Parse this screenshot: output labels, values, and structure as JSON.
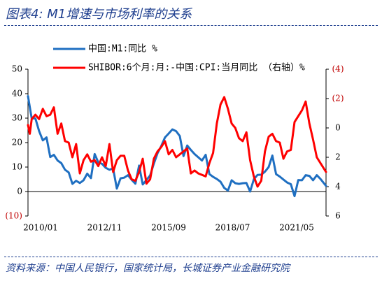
{
  "figure": {
    "label": "图表4:",
    "title": "M1增速与市场利率的关系",
    "source": "资料来源：中国人民银行，国家统计局，长城证券产业金融研究院"
  },
  "colors": {
    "heading": "#1f3f8f",
    "series_m1": "#1f6fc1",
    "series_real_rate": "#ff0000",
    "axis": "#000000",
    "right_axis_neg_label": "#c00000"
  },
  "chart_data": {
    "type": "line",
    "legend_placement": "top",
    "grid": false,
    "x_tick_labels": [
      "2010/01",
      "2012/11",
      "2015/09",
      "2018/07",
      "2021/05"
    ],
    "x_range": [
      "2010-01",
      "2023-06"
    ],
    "left_axis": {
      "ylim": [
        -10,
        50
      ],
      "ticks": [
        -10,
        0,
        10,
        20,
        30,
        40,
        50
      ],
      "tick_labels": [
        "(10)",
        "0",
        "10",
        "20",
        "30",
        "40",
        "50"
      ]
    },
    "right_axis": {
      "inverted": true,
      "ylim": [
        -4,
        6
      ],
      "ticks": [
        -4,
        -2,
        0,
        2,
        4,
        6
      ],
      "tick_labels": [
        "(4)",
        "(2)",
        "0",
        "2",
        "4",
        "6"
      ],
      "unit": "%"
    },
    "series": [
      {
        "name": "中国:M1:同比 %",
        "axis": "left",
        "x": [
          "2010-01",
          "2010-03",
          "2010-05",
          "2010-07",
          "2010-09",
          "2010-11",
          "2011-01",
          "2011-03",
          "2011-05",
          "2011-07",
          "2011-09",
          "2011-11",
          "2012-01",
          "2012-03",
          "2012-05",
          "2012-07",
          "2012-09",
          "2012-11",
          "2013-01",
          "2013-03",
          "2013-05",
          "2013-07",
          "2013-09",
          "2013-11",
          "2014-01",
          "2014-03",
          "2014-05",
          "2014-07",
          "2014-09",
          "2014-11",
          "2015-01",
          "2015-03",
          "2015-05",
          "2015-07",
          "2015-09",
          "2015-11",
          "2016-01",
          "2016-03",
          "2016-05",
          "2016-07",
          "2016-09",
          "2016-11",
          "2017-01",
          "2017-03",
          "2017-05",
          "2017-07",
          "2017-09",
          "2017-11",
          "2018-01",
          "2018-03",
          "2018-05",
          "2018-07",
          "2018-09",
          "2018-11",
          "2019-01",
          "2019-03",
          "2019-05",
          "2019-07",
          "2019-09",
          "2019-11",
          "2020-01",
          "2020-03",
          "2020-05",
          "2020-07",
          "2020-09",
          "2020-11",
          "2021-01",
          "2021-03",
          "2021-05",
          "2021-07",
          "2021-09",
          "2021-11",
          "2022-01",
          "2022-03",
          "2022-05",
          "2022-07",
          "2022-09",
          "2022-11",
          "2023-01",
          "2023-03",
          "2023-06"
        ],
        "values": [
          39.0,
          29.9,
          29.9,
          24.7,
          20.9,
          22.1,
          14.1,
          15.0,
          12.7,
          11.6,
          8.9,
          7.8,
          3.1,
          4.4,
          3.5,
          4.6,
          7.3,
          5.5,
          15.3,
          11.9,
          11.3,
          9.7,
          8.9,
          9.4,
          1.2,
          5.4,
          5.7,
          6.7,
          4.8,
          3.2,
          10.6,
          2.9,
          4.7,
          6.6,
          11.4,
          15.7,
          18.6,
          22.1,
          23.7,
          25.4,
          24.7,
          22.7,
          14.5,
          18.8,
          17.0,
          15.3,
          14.0,
          12.7,
          15.0,
          7.1,
          6.0,
          5.1,
          4.0,
          1.5,
          0.4,
          4.6,
          3.4,
          3.1,
          3.4,
          3.5,
          0.0,
          5.0,
          6.8,
          6.9,
          8.1,
          10.0,
          14.7,
          7.1,
          6.1,
          4.9,
          3.7,
          3.0,
          -1.9,
          4.7,
          4.6,
          6.7,
          6.4,
          4.6,
          6.7,
          5.1,
          2.3
        ]
      },
      {
        "name": "SHIBOR:6个月:月:-中国:CPI:当月同比 （右轴）%",
        "axis": "right",
        "x": [
          "2010-01",
          "2010-02",
          "2010-03",
          "2010-05",
          "2010-07",
          "2010-09",
          "2010-11",
          "2011-01",
          "2011-03",
          "2011-05",
          "2011-07",
          "2011-09",
          "2011-11",
          "2012-01",
          "2012-03",
          "2012-05",
          "2012-07",
          "2012-09",
          "2012-11",
          "2013-01",
          "2013-03",
          "2013-05",
          "2013-07",
          "2013-09",
          "2013-11",
          "2014-01",
          "2014-03",
          "2014-05",
          "2014-07",
          "2014-09",
          "2014-11",
          "2015-01",
          "2015-03",
          "2015-05",
          "2015-07",
          "2015-09",
          "2015-11",
          "2016-01",
          "2016-03",
          "2016-05",
          "2016-07",
          "2016-09",
          "2016-11",
          "2017-01",
          "2017-03",
          "2017-05",
          "2017-07",
          "2017-09",
          "2017-11",
          "2018-01",
          "2018-03",
          "2018-05",
          "2018-07",
          "2018-09",
          "2018-11",
          "2019-01",
          "2019-03",
          "2019-05",
          "2019-07",
          "2019-09",
          "2019-11",
          "2020-01",
          "2020-03",
          "2020-05",
          "2020-07",
          "2020-09",
          "2020-11",
          "2021-01",
          "2021-03",
          "2021-05",
          "2021-07",
          "2021-09",
          "2021-11",
          "2022-01",
          "2022-03",
          "2022-05",
          "2022-07",
          "2022-09",
          "2022-11",
          "2023-01",
          "2023-03",
          "2023-06"
        ],
        "values": [
          -0.2,
          0.4,
          -0.6,
          -0.9,
          -0.6,
          -1.3,
          -0.8,
          -0.9,
          -1.4,
          0.4,
          -0.3,
          0.9,
          1.0,
          2.0,
          1.1,
          3.1,
          2.2,
          1.8,
          2.3,
          2.2,
          2.6,
          2.0,
          2.6,
          1.1,
          3.0,
          2.2,
          1.9,
          1.9,
          2.9,
          3.5,
          3.6,
          3.0,
          2.1,
          3.8,
          3.5,
          2.1,
          1.6,
          1.3,
          0.9,
          1.8,
          1.5,
          2.0,
          1.8,
          1.6,
          1.4,
          3.1,
          2.9,
          3.1,
          3.2,
          3.3,
          2.4,
          1.7,
          -0.3,
          -1.6,
          -2.1,
          -1.3,
          -0.3,
          0.0,
          0.7,
          0.9,
          0.3,
          2.2,
          3.3,
          4.0,
          3.6,
          1.6,
          0.6,
          0.4,
          0.9,
          1.0,
          2.1,
          1.6,
          1.5,
          -0.4,
          -0.8,
          -1.2,
          -1.8,
          -0.3,
          0.8,
          2.0,
          2.4,
          3.0
        ]
      }
    ]
  }
}
